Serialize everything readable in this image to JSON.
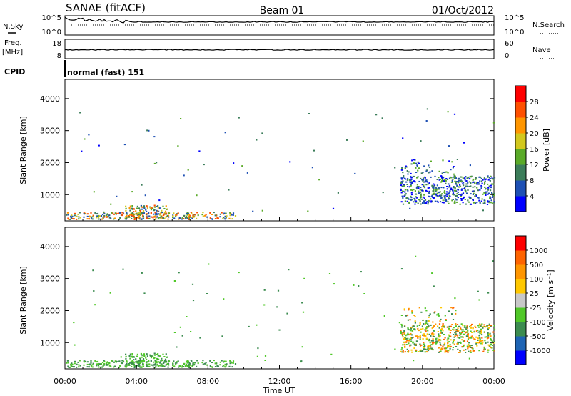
{
  "header": {
    "station": "SANAE (fitACF)",
    "beam": "Beam 01",
    "date": "01/Oct/2012"
  },
  "top_panel": {
    "left_label": "N.Sky",
    "right_label": "N.Search",
    "left_ticks": [
      "10^5",
      "10^0"
    ],
    "right_ticks": [
      "10^5",
      "10^0"
    ]
  },
  "freq_panel": {
    "left_label_line1": "Freq.",
    "left_label_line2": "[MHz]",
    "left_ticks": [
      "18",
      "8"
    ],
    "right_label": "Nave",
    "right_ticks": [
      "60",
      "0"
    ]
  },
  "cpid": {
    "label": "CPID",
    "value": "normal (fast) 151"
  },
  "colors": {
    "power": [
      "#0000ff",
      "#1e50b4",
      "#3c7d5a",
      "#5aaa28",
      "#d2c81e",
      "#ff9600",
      "#ff5000",
      "#ff0000"
    ],
    "velocity": [
      "#ff0000",
      "#ff6400",
      "#ff9600",
      "#ffc800",
      "#c8c8c8",
      "#50c828",
      "#3c8c50",
      "#1e64b4",
      "#0000ff"
    ]
  },
  "chart_data": [
    {
      "type": "heatmap",
      "title": "",
      "ylabel": "Slant Range [km]",
      "xlabel": "",
      "xlim": [
        0,
        24
      ],
      "ylim": [
        180,
        4600
      ],
      "y_ticks": [
        "1000",
        "2000",
        "3000",
        "4000"
      ],
      "x_ticks": [
        "00:00",
        "04:00",
        "08:00",
        "12:00",
        "16:00",
        "20:00",
        "00:00"
      ],
      "colorbar": {
        "label": "Power [dB]",
        "range": [
          0,
          32
        ],
        "ticks": [
          "4",
          "8",
          "12",
          "16",
          "20",
          "24",
          "28"
        ]
      }
    },
    {
      "type": "heatmap",
      "title": "",
      "ylabel": "Slant Range [km]",
      "xlabel": "Time UT",
      "xlim": [
        0,
        24
      ],
      "ylim": [
        180,
        4600
      ],
      "y_ticks": [
        "1000",
        "2000",
        "3000",
        "4000"
      ],
      "x_ticks": [
        "00:00",
        "04:00",
        "08:00",
        "12:00",
        "16:00",
        "20:00",
        "00:00"
      ],
      "colorbar": {
        "label": "Velocity [m s⁻¹]",
        "ticks": [
          "1000",
          "500",
          "100",
          "25",
          "-25",
          "-100",
          "-500",
          "-1000"
        ]
      }
    }
  ]
}
